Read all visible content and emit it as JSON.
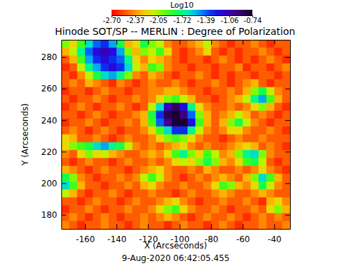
{
  "chart_data": {
    "type": "heatmap",
    "title": "Hinode SOT/SP -- MERLIN : Degree of Polarization",
    "x_label": "X (Arcseconds)",
    "y_label": "Y (Arcseconds)",
    "annotations": [
      "9-Aug-2020 06:42:05.455"
    ],
    "xlim": [
      -175,
      -30
    ],
    "ylim": [
      171,
      291
    ],
    "xticks": [
      -160,
      -140,
      -120,
      -100,
      -80,
      -60,
      -40
    ],
    "yticks": [
      180,
      200,
      220,
      240,
      260,
      280
    ],
    "colorbar": {
      "title": "Log10",
      "range": [
        -2.7,
        -0.74
      ],
      "ticks": [
        {
          "value": -2.7,
          "label": "-2.70"
        },
        -2.37,
        -2.05,
        -1.72,
        -1.39,
        -1.06,
        -0.74
      ]
    },
    "x": [
      -172.5,
      -167.5,
      -162.5,
      -157.5,
      -152.5,
      -147.5,
      -142.5,
      -137.5,
      -132.5,
      -127.5,
      -122.5,
      -117.5,
      -112.5,
      -107.5,
      -102.5,
      -97.5,
      -92.5,
      -87.5,
      -82.5,
      -77.5,
      -72.5,
      -67.5,
      -62.5,
      -57.5,
      -52.5,
      -47.5,
      -42.5,
      -37.5,
      -32.5
    ],
    "y": [
      288.5,
      283.5,
      278.5,
      273.5,
      268.5,
      263.5,
      258.5,
      253.5,
      248.5,
      243.5,
      238.5,
      233.5,
      228.5,
      223.5,
      218.5,
      213.5,
      208.5,
      203.5,
      198.5,
      193.5,
      188.5,
      183.5,
      178.5,
      173.5
    ],
    "z": [
      [
        -2.0,
        -2.2,
        -1.9,
        -1.6,
        -1.4,
        -1.3,
        -1.5,
        -1.8,
        -2.3,
        -2.2,
        -1.8,
        -2.0,
        -2.1,
        -2.4,
        -2.5,
        -2.5,
        -2.4,
        -2.3,
        -2.1,
        -2.4,
        -2.5,
        -2.6,
        -2.5,
        -2.5,
        -2.4,
        -2.5,
        -2.6,
        -2.5,
        -2.5
      ],
      [
        -2.3,
        -2.1,
        -1.7,
        -1.4,
        -1.2,
        -1.1,
        -1.2,
        -1.5,
        -2.0,
        -2.3,
        -2.0,
        -2.1,
        -1.9,
        -2.2,
        -2.5,
        -2.6,
        -2.5,
        -2.4,
        -2.2,
        -2.5,
        -2.6,
        -2.5,
        -2.6,
        -2.5,
        -2.5,
        -2.4,
        -2.5,
        -2.6,
        -2.5
      ],
      [
        -2.5,
        -2.3,
        -1.9,
        -1.5,
        -1.3,
        -1.2,
        -1.3,
        -1.4,
        -1.7,
        -2.2,
        -2.4,
        -2.2,
        -2.3,
        -2.4,
        -2.5,
        -2.6,
        -2.5,
        -2.5,
        -2.6,
        -2.5,
        -2.4,
        -2.5,
        -2.6,
        -2.5,
        -2.6,
        -2.5,
        -2.4,
        -2.5,
        -2.6
      ],
      [
        -2.6,
        -2.5,
        -2.1,
        -1.7,
        -1.5,
        -1.3,
        -1.2,
        -1.3,
        -1.6,
        -2.1,
        -2.3,
        -1.9,
        -2.0,
        -2.4,
        -2.5,
        -2.5,
        -2.6,
        -2.5,
        -2.5,
        -2.6,
        -2.5,
        -2.5,
        -2.4,
        -2.6,
        -2.5,
        -2.5,
        -2.6,
        -2.5,
        -2.4
      ],
      [
        -2.5,
        -2.6,
        -2.4,
        -2.1,
        -1.8,
        -1.6,
        -1.5,
        -1.7,
        -2.0,
        -2.4,
        -2.5,
        -2.3,
        -2.4,
        -2.5,
        -2.6,
        -2.5,
        -2.5,
        -2.4,
        -2.5,
        -2.6,
        -2.5,
        -2.6,
        -2.5,
        -2.5,
        -2.6,
        -2.5,
        -2.5,
        -2.6,
        -2.5
      ],
      [
        -2.5,
        -2.4,
        -2.5,
        -2.3,
        -2.4,
        -2.5,
        -2.6,
        -2.4,
        -2.5,
        -2.6,
        -2.5,
        -2.4,
        -2.5,
        -2.5,
        -2.4,
        -2.5,
        -2.6,
        -2.5,
        -2.5,
        -2.4,
        -2.5,
        -2.6,
        -2.5,
        -2.4,
        -2.3,
        -2.5,
        -2.6,
        -2.5,
        -2.5
      ],
      [
        -2.6,
        -2.5,
        -2.5,
        -2.6,
        -2.5,
        -2.4,
        -2.5,
        -2.5,
        -2.6,
        -2.5,
        -2.5,
        -2.4,
        -2.4,
        -2.3,
        -2.3,
        -2.4,
        -2.5,
        -2.5,
        -2.6,
        -2.5,
        -2.5,
        -2.4,
        -2.5,
        -2.3,
        -2.0,
        -1.8,
        -2.1,
        -2.4,
        -2.5
      ],
      [
        -2.5,
        -2.6,
        -2.5,
        -2.5,
        -2.4,
        -2.5,
        -2.6,
        -2.5,
        -2.5,
        -2.4,
        -2.5,
        -2.4,
        -2.2,
        -2.0,
        -1.9,
        -2.1,
        -2.3,
        -2.5,
        -2.5,
        -2.6,
        -2.5,
        -2.4,
        -2.3,
        -2.1,
        -1.7,
        -1.5,
        -1.9,
        -2.3,
        -2.5
      ],
      [
        -2.6,
        -2.5,
        -2.4,
        -2.5,
        -2.6,
        -2.5,
        -2.5,
        -2.4,
        -2.5,
        -2.6,
        -2.5,
        -2.1,
        -1.6,
        -1.1,
        -0.9,
        -1.2,
        -1.7,
        -2.2,
        -2.4,
        -2.5,
        -2.5,
        -2.4,
        -2.5,
        -2.4,
        -2.2,
        -2.0,
        -2.3,
        -2.5,
        -2.6
      ],
      [
        -2.5,
        -2.5,
        -2.6,
        -2.5,
        -2.4,
        -2.5,
        -2.6,
        -2.5,
        -2.5,
        -2.4,
        -2.3,
        -1.8,
        -1.3,
        -0.85,
        -0.78,
        -0.95,
        -1.4,
        -2.0,
        -2.3,
        -2.5,
        -2.4,
        -2.3,
        -2.1,
        -2.3,
        -2.5,
        -2.4,
        -2.5,
        -2.6,
        -2.5
      ],
      [
        -2.6,
        -2.5,
        -2.5,
        -2.4,
        -2.5,
        -2.6,
        -2.5,
        -2.5,
        -2.4,
        -2.5,
        -2.3,
        -1.9,
        -1.4,
        -1.0,
        -0.8,
        -0.78,
        -1.2,
        -1.9,
        -2.3,
        -2.5,
        -2.3,
        -2.0,
        -1.8,
        -2.1,
        -2.4,
        -2.5,
        -2.6,
        -2.5,
        -2.5
      ],
      [
        -2.5,
        -2.4,
        -2.5,
        -2.6,
        -2.5,
        -2.4,
        -2.5,
        -2.6,
        -2.5,
        -2.5,
        -2.4,
        -2.2,
        -1.9,
        -1.6,
        -1.3,
        -1.3,
        -1.7,
        -2.1,
        -2.4,
        -2.5,
        -2.4,
        -2.2,
        -2.2,
        -2.4,
        -2.5,
        -2.5,
        -2.4,
        -2.5,
        -2.6
      ],
      [
        -2.2,
        -2.3,
        -2.5,
        -2.5,
        -2.4,
        -2.5,
        -2.6,
        -2.5,
        -2.4,
        -2.5,
        -2.5,
        -2.4,
        -2.2,
        -2.0,
        -1.9,
        -2.0,
        -2.2,
        -2.4,
        -2.5,
        -2.5,
        -2.6,
        -2.5,
        -2.4,
        -2.5,
        -2.5,
        -2.4,
        -2.5,
        -2.5,
        -2.5
      ],
      [
        -2.2,
        -2.0,
        -1.9,
        -1.8,
        -1.6,
        -1.5,
        -1.7,
        -1.8,
        -2.1,
        -2.4,
        -2.5,
        -2.4,
        -2.5,
        -2.4,
        -2.3,
        -2.2,
        -2.4,
        -2.5,
        -2.4,
        -2.5,
        -2.5,
        -2.4,
        -2.3,
        -2.2,
        -2.3,
        -2.5,
        -2.4,
        -2.5,
        -2.6
      ],
      [
        -2.4,
        -2.5,
        -2.2,
        -2.0,
        -2.2,
        -2.1,
        -2.3,
        -2.4,
        -2.5,
        -2.5,
        -2.4,
        -2.3,
        -2.4,
        -2.2,
        -1.9,
        -1.7,
        -2.0,
        -2.2,
        -1.9,
        -2.1,
        -2.4,
        -2.3,
        -2.0,
        -1.7,
        -1.6,
        -2.0,
        -2.4,
        -2.5,
        -2.5
      ],
      [
        -2.5,
        -2.6,
        -2.5,
        -2.4,
        -2.5,
        -2.5,
        -2.6,
        -2.5,
        -2.4,
        -2.5,
        -2.5,
        -2.4,
        -2.5,
        -2.4,
        -2.2,
        -2.1,
        -2.2,
        -2.0,
        -1.8,
        -2.0,
        -2.3,
        -2.4,
        -2.2,
        -1.9,
        -1.8,
        -2.1,
        -2.5,
        -2.6,
        -2.5
      ],
      [
        -2.3,
        -2.4,
        -2.5,
        -2.6,
        -2.5,
        -2.4,
        -2.5,
        -2.5,
        -2.6,
        -2.5,
        -2.4,
        -2.3,
        -2.2,
        -2.4,
        -2.5,
        -2.5,
        -2.4,
        -2.5,
        -2.3,
        -2.4,
        -2.5,
        -2.5,
        -2.4,
        -2.5,
        -2.4,
        -2.2,
        -2.4,
        -2.5,
        -2.6
      ],
      [
        -1.8,
        -2.0,
        -2.4,
        -2.5,
        -2.6,
        -2.5,
        -2.5,
        -2.4,
        -2.5,
        -2.4,
        -2.1,
        -1.9,
        -2.1,
        -2.4,
        -2.5,
        -2.6,
        -2.5,
        -2.4,
        -2.5,
        -2.4,
        -2.3,
        -2.4,
        -2.5,
        -2.3,
        -2.0,
        -1.6,
        -1.9,
        -2.3,
        -2.5
      ],
      [
        -1.6,
        -1.9,
        -2.3,
        -2.5,
        -2.5,
        -2.6,
        -2.5,
        -2.5,
        -2.4,
        -2.5,
        -2.3,
        -2.2,
        -2.4,
        -2.5,
        -2.5,
        -2.4,
        -2.5,
        -2.5,
        -2.4,
        -2.2,
        -1.9,
        -2.0,
        -2.3,
        -2.4,
        -2.2,
        -1.8,
        -2.1,
        -2.4,
        -2.5
      ],
      [
        -2.1,
        -2.3,
        -2.5,
        -2.6,
        -2.5,
        -2.5,
        -2.4,
        -2.5,
        -2.6,
        -2.5,
        -2.5,
        -2.4,
        -2.5,
        -2.5,
        -2.6,
        -2.5,
        -2.4,
        -2.5,
        -2.5,
        -2.4,
        -2.3,
        -2.4,
        -2.5,
        -2.5,
        -2.4,
        -2.3,
        -2.4,
        -2.5,
        -2.5
      ],
      [
        -2.5,
        -2.5,
        -2.6,
        -2.5,
        -2.4,
        -2.5,
        -2.5,
        -2.6,
        -2.5,
        -2.4,
        -2.5,
        -2.5,
        -2.4,
        -2.3,
        -2.2,
        -2.4,
        -2.5,
        -2.6,
        -2.5,
        -2.5,
        -2.4,
        -2.5,
        -2.5,
        -2.4,
        -2.5,
        -2.6,
        -2.3,
        -2.2,
        -2.4
      ],
      [
        -2.6,
        -2.5,
        -2.5,
        -2.4,
        -2.5,
        -2.6,
        -2.5,
        -2.5,
        -2.4,
        -2.5,
        -2.5,
        -2.4,
        -2.2,
        -2.0,
        -1.9,
        -2.2,
        -2.4,
        -2.5,
        -2.5,
        -2.4,
        -2.5,
        -2.6,
        -2.5,
        -2.5,
        -2.4,
        -2.5,
        -2.2,
        -2.0,
        -2.3
      ],
      [
        -2.5,
        -2.4,
        -2.5,
        -2.6,
        -2.5,
        -2.4,
        -2.5,
        -2.6,
        -2.5,
        -2.5,
        -2.4,
        -2.5,
        -2.4,
        -2.3,
        -2.4,
        -2.5,
        -2.6,
        -2.5,
        -2.4,
        -2.5,
        -2.5,
        -2.4,
        -2.5,
        -2.6,
        -2.5,
        -2.4,
        -2.5,
        -2.4,
        -2.5
      ],
      [
        -2.4,
        -2.5,
        -2.6,
        -2.5,
        -2.5,
        -2.4,
        -2.5,
        -2.5,
        -2.6,
        -2.5,
        -2.4,
        -2.5,
        -2.5,
        -2.6,
        -2.5,
        -2.4,
        -2.5,
        -2.5,
        -2.6,
        -2.5,
        -2.4,
        -2.5,
        -2.6,
        -2.5,
        -2.5,
        -2.4,
        -2.5,
        -2.5,
        -2.4
      ]
    ]
  }
}
